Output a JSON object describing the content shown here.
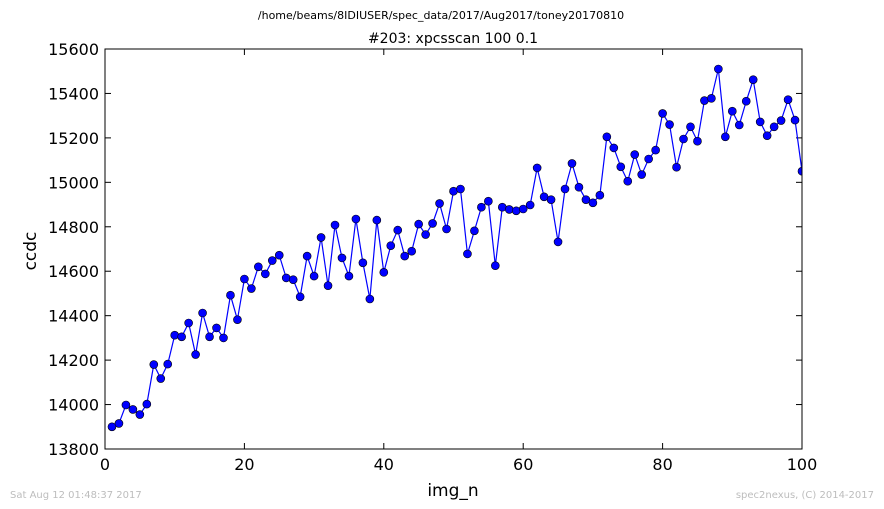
{
  "page": {
    "suptitle": "/home/beams/8IDIUSER/spec_data/2017/Aug2017/toney20170810",
    "footer_left": "Sat Aug 12 01:48:37 2017",
    "footer_right": "spec2nexus, (C) 2014-2017"
  },
  "chart_data": {
    "type": "line",
    "title": "#203: xpcsscan 100 0.1",
    "xlabel": "img_n",
    "ylabel": "ccdc",
    "xlim": [
      0,
      100
    ],
    "ylim": [
      13800,
      15600
    ],
    "xticks": [
      0,
      20,
      40,
      60,
      80,
      100
    ],
    "yticks": [
      13800,
      14000,
      14200,
      14400,
      14600,
      14800,
      15000,
      15200,
      15400,
      15600
    ],
    "grid": false,
    "marker": "circle",
    "colors": {
      "line": "#0000ff",
      "marker_edge": "#000000",
      "axes": "#000000"
    },
    "series": [
      {
        "x": [
          1,
          2,
          3,
          4,
          5,
          6,
          7,
          8,
          9,
          10,
          11,
          12,
          13,
          14,
          15,
          16,
          17,
          18,
          19,
          20,
          21,
          22,
          23,
          24,
          25,
          26,
          27,
          28,
          29,
          30,
          31,
          32,
          33,
          34,
          35,
          36,
          37,
          38,
          39,
          40,
          41,
          42,
          43,
          44,
          45,
          46,
          47,
          48,
          49,
          50,
          51,
          52,
          53,
          54,
          55,
          56,
          57,
          58,
          59,
          60,
          61,
          62,
          63,
          64,
          65,
          66,
          67,
          68,
          69,
          70,
          71,
          72,
          73,
          74,
          75,
          76,
          77,
          78,
          79,
          80,
          81,
          82,
          83,
          84,
          85,
          86,
          87,
          88,
          89,
          90,
          91,
          92,
          93,
          94,
          95,
          96,
          97,
          98,
          99,
          100
        ],
        "y": [
          13900,
          13915,
          13998,
          13978,
          13955,
          14002,
          14180,
          14117,
          14182,
          14312,
          14305,
          14367,
          14225,
          14412,
          14305,
          14345,
          14300,
          14492,
          14382,
          14565,
          14522,
          14620,
          14588,
          14648,
          14672,
          14570,
          14562,
          14485,
          14668,
          14578,
          14752,
          14535,
          14808,
          14660,
          14578,
          14835,
          14638,
          14475,
          14830,
          14595,
          14715,
          14785,
          14668,
          14690,
          14812,
          14765,
          14815,
          14905,
          14790,
          14960,
          14970,
          14678,
          14782,
          14888,
          14915,
          14625,
          14888,
          14878,
          14872,
          14880,
          14898,
          15065,
          14935,
          14922,
          14732,
          14970,
          15085,
          14978,
          14922,
          14908,
          14942,
          15205,
          15155,
          15070,
          15005,
          15125,
          15035,
          15105,
          15145,
          15310,
          15260,
          15068,
          15195,
          15250,
          15185,
          15368,
          15378,
          15510,
          15205,
          15320,
          15258,
          15365,
          15462,
          15272,
          15210,
          15250,
          15278,
          15372,
          15280,
          15050
        ]
      }
    ]
  }
}
